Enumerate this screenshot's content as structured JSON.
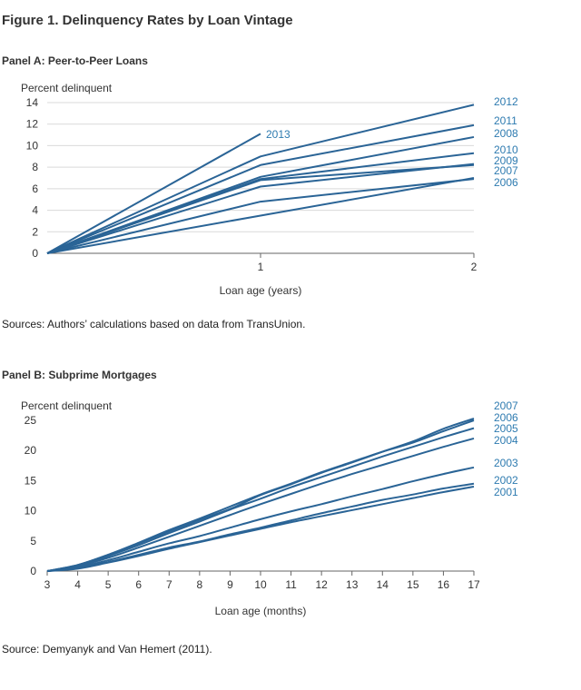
{
  "figure_title": "Figure 1. Delinquency Rates by Loan Vintage",
  "panel_a": {
    "title": "Panel A: Peer-to-Peer Loans",
    "source": "Sources: Authors’ calculations based on data from TransUnion."
  },
  "panel_b": {
    "title": "Panel B: Subprime Mortgages",
    "source": "Source: Demyanyk and Van Hemert (2011)."
  },
  "colors": {
    "line": "#2a6496",
    "label": "#2e7bb0",
    "grid": "#d9d9d9",
    "axis": "#666666"
  },
  "chart_data": [
    {
      "type": "line",
      "ylabel": "Percent delinquent",
      "xlabel": "Loan age (years)",
      "xlim": [
        0,
        2
      ],
      "ylim": [
        0,
        14
      ],
      "xticks": [
        1,
        2
      ],
      "yticks": [
        0,
        2,
        4,
        6,
        8,
        10,
        12,
        14
      ],
      "grid": true,
      "x": [
        0,
        1,
        2
      ],
      "series": [
        {
          "name": "2013",
          "values": [
            0,
            11.1,
            null
          ]
        },
        {
          "name": "2012",
          "values": [
            0,
            9.0,
            13.8
          ]
        },
        {
          "name": "2011",
          "values": [
            0,
            8.2,
            11.9
          ]
        },
        {
          "name": "2008",
          "values": [
            0,
            7.1,
            10.8
          ]
        },
        {
          "name": "2010",
          "values": [
            0,
            6.9,
            9.3
          ]
        },
        {
          "name": "2009",
          "values": [
            0,
            6.8,
            8.2
          ]
        },
        {
          "name": "2007",
          "values": [
            0,
            6.2,
            8.3
          ]
        },
        {
          "name": "2006",
          "values": [
            0,
            4.8,
            6.9
          ]
        },
        {
          "name": "",
          "values": [
            0,
            3.5,
            7.0
          ]
        }
      ]
    },
    {
      "type": "line",
      "ylabel": "Percent delinquent",
      "xlabel": "Loan age (months)",
      "xlim": [
        3,
        17
      ],
      "ylim": [
        0,
        25
      ],
      "xticks": [
        3,
        4,
        5,
        6,
        7,
        8,
        9,
        10,
        11,
        12,
        13,
        14,
        15,
        16,
        17
      ],
      "yticks": [
        0,
        5,
        10,
        15,
        20,
        25
      ],
      "grid": false,
      "x": [
        3,
        4,
        5,
        6,
        7,
        8,
        9,
        10,
        11,
        12,
        13,
        14,
        15,
        16,
        17
      ],
      "series": [
        {
          "name": "2007",
          "values": [
            0,
            1.0,
            2.7,
            4.6,
            6.6,
            8.5,
            10.3,
            12.6,
            14.4,
            16.3,
            18.0,
            19.8,
            21.5,
            23.6,
            25.3
          ]
        },
        {
          "name": "2006",
          "values": [
            0,
            1.0,
            2.7,
            4.7,
            6.8,
            8.7,
            10.7,
            12.7,
            14.5,
            16.4,
            18.1,
            19.8,
            21.3,
            23.2,
            25.0
          ]
        },
        {
          "name": "2005",
          "values": [
            0,
            0.9,
            2.5,
            4.3,
            6.3,
            8.2,
            10.2,
            12.0,
            13.9,
            15.6,
            17.3,
            19.0,
            20.6,
            22.2,
            23.7
          ]
        },
        {
          "name": "2004",
          "values": [
            0,
            0.8,
            2.2,
            3.9,
            5.7,
            7.5,
            9.3,
            11.1,
            12.8,
            14.5,
            16.1,
            17.6,
            19.1,
            20.6,
            22.0
          ]
        },
        {
          "name": "2003",
          "values": [
            0,
            0.6,
            1.8,
            3.2,
            4.6,
            5.8,
            7.2,
            8.6,
            9.9,
            11.1,
            12.4,
            13.6,
            14.9,
            16.1,
            17.2
          ]
        },
        {
          "name": "2002",
          "values": [
            0,
            0.5,
            1.5,
            2.7,
            3.9,
            4.9,
            6.1,
            7.2,
            8.4,
            9.6,
            10.7,
            11.8,
            12.7,
            13.7,
            14.5
          ]
        },
        {
          "name": "2001",
          "values": [
            0,
            0.4,
            1.4,
            2.5,
            3.7,
            4.8,
            5.9,
            7.0,
            8.1,
            9.1,
            10.1,
            11.1,
            12.1,
            13.1,
            14.0
          ]
        }
      ]
    }
  ]
}
